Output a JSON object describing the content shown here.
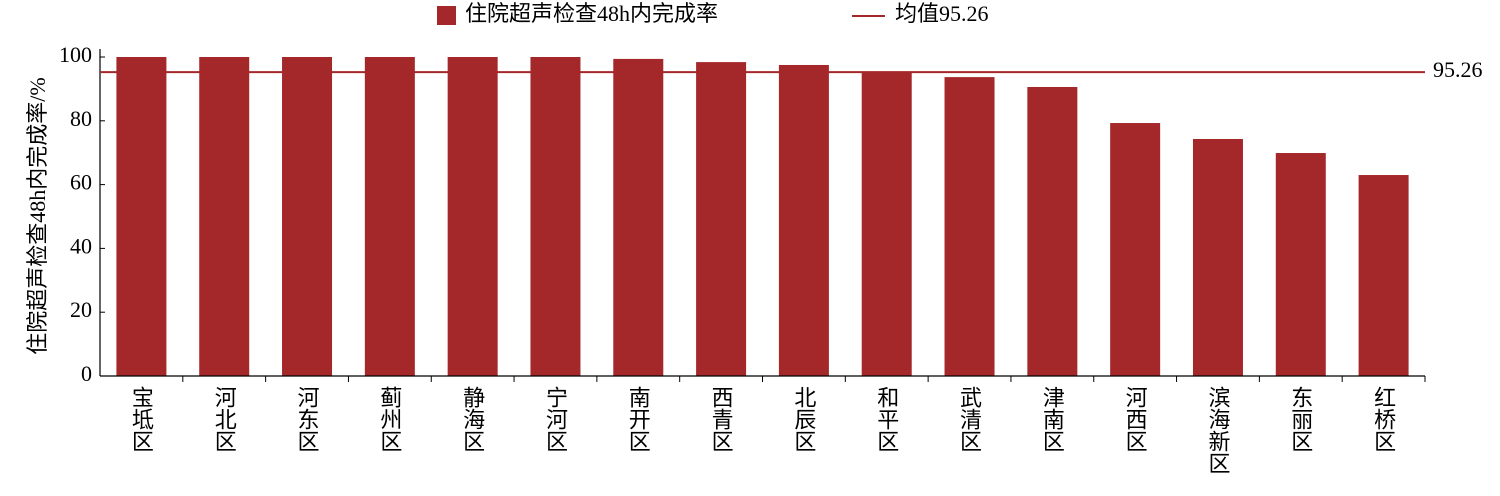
{
  "chart_data": {
    "type": "bar",
    "y_label": "住院超声检查48h内完成率/%",
    "categories": [
      "宝坻区",
      "河北区",
      "河东区",
      "蓟州区",
      "静海区",
      "宁河区",
      "南开区",
      "西青区",
      "北辰区",
      "和平区",
      "武清区",
      "津南区",
      "河西区",
      "滨海新区",
      "东丽区",
      "红桥区"
    ],
    "series": [
      {
        "name": "住院超声检查48h内完成率",
        "color": "#a4282a",
        "values": [
          100,
          100,
          100,
          100,
          100,
          100,
          99.4,
          98.4,
          97.5,
          95.3,
          93.7,
          90.6,
          79.3,
          74.3,
          69.9,
          63.0
        ]
      }
    ],
    "mean_line": {
      "name": "均值95.26",
      "value": 95.26,
      "color": "#a4282a"
    },
    "ylim": [
      0,
      100
    ],
    "yticks": [
      0,
      20,
      40,
      60,
      80,
      100
    ],
    "legend": "top"
  }
}
